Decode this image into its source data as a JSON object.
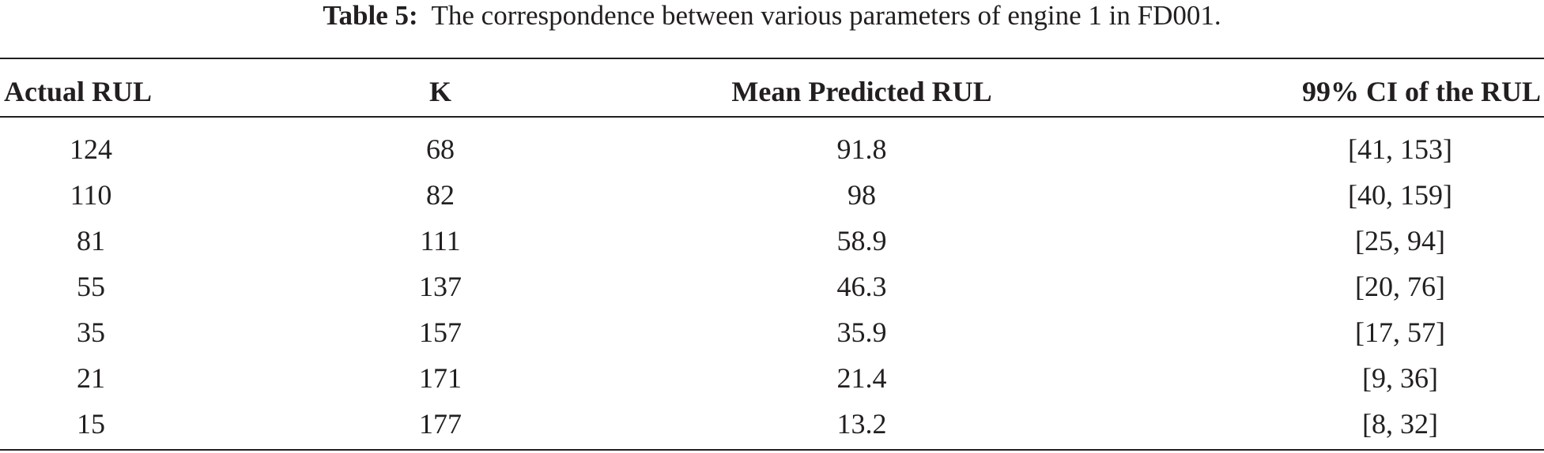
{
  "caption": {
    "label": "Table 5:",
    "text": "The correspondence between various parameters of engine 1 in FD001."
  },
  "table": {
    "header": [
      "Actual RUL",
      "K",
      "Mean Predicted RUL",
      "99% CI of the RUL"
    ],
    "rows": [
      [
        "124",
        "68",
        "91.8",
        "[41, 153]"
      ],
      [
        "110",
        "82",
        "98",
        "[40, 159]"
      ],
      [
        "81",
        "111",
        "58.9",
        "[25, 94]"
      ],
      [
        "55",
        "137",
        "46.3",
        "[20, 76]"
      ],
      [
        "35",
        "157",
        "35.9",
        "[17, 57]"
      ],
      [
        "21",
        "171",
        "21.4",
        "[9, 36]"
      ],
      [
        "15",
        "177",
        "13.2",
        "[8, 32]"
      ]
    ]
  }
}
